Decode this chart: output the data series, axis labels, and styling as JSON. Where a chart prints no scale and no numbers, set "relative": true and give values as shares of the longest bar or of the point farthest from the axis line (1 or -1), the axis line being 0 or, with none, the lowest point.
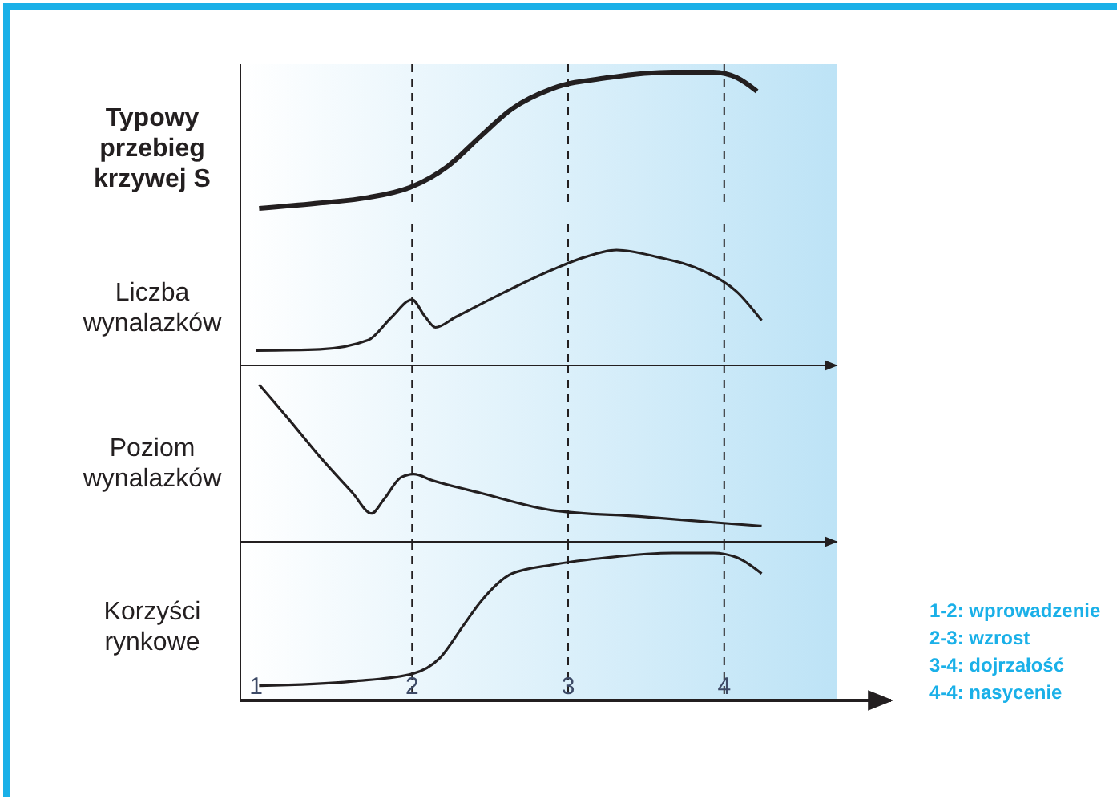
{
  "chart_data": [
    {
      "type": "line",
      "ylabel": "Typowy przebieg krzywej S",
      "relative": true,
      "tick_labels": false,
      "xlim": [
        0.9,
        4.72
      ],
      "line_style": "solid",
      "marker": "none",
      "series": [
        {
          "color": "#231f20",
          "x": [
            1.02,
            1.41,
            1.72,
            2.0,
            2.23,
            2.44,
            2.64,
            2.9,
            3.26,
            3.67,
            3.93,
            4.08,
            4.21
          ],
          "values": [
            0,
            0.04,
            0.08,
            0.16,
            0.31,
            0.53,
            0.73,
            0.88,
            0.96,
            1,
            1,
            0.96,
            0.86
          ]
        }
      ],
      "ref_lines": [
        {
          "axis": "x",
          "value": 2,
          "line_style": "dashed"
        },
        {
          "axis": "x",
          "value": 3,
          "line_style": "dashed"
        },
        {
          "axis": "x",
          "value": 4,
          "line_style": "dashed"
        }
      ]
    },
    {
      "type": "line",
      "ylabel": "Liczba wynalazków",
      "relative": true,
      "tick_labels": false,
      "xlim": [
        0.9,
        4.72
      ],
      "line_style": "solid",
      "marker": "none",
      "series": [
        {
          "color": "#231f20",
          "x": [
            1.0,
            1.41,
            1.72,
            1.87,
            2.0,
            2.08,
            2.15,
            2.28,
            2.54,
            2.9,
            3.11,
            3.31,
            3.57,
            3.88,
            4.08,
            4.24
          ],
          "values": [
            0.13,
            0.14,
            0.22,
            0.42,
            0.57,
            0.43,
            0.33,
            0.42,
            0.6,
            0.83,
            0.94,
            1,
            0.94,
            0.81,
            0.64,
            0.39
          ]
        }
      ],
      "ref_lines": [
        {
          "axis": "x",
          "value": 2,
          "line_style": "dashed"
        },
        {
          "axis": "x",
          "value": 3,
          "line_style": "dashed"
        },
        {
          "axis": "x",
          "value": 4,
          "line_style": "dashed"
        }
      ]
    },
    {
      "type": "line",
      "ylabel": "Poziom wynalazków",
      "relative": true,
      "tick_labels": false,
      "xlim": [
        0.9,
        4.72
      ],
      "line_style": "solid",
      "marker": "none",
      "series": [
        {
          "color": "#231f20",
          "x": [
            1.02,
            1.21,
            1.41,
            1.62,
            1.74,
            1.82,
            1.93,
            2.01,
            2.13,
            2.44,
            2.9,
            3.47,
            3.98,
            4.24
          ],
          "values": [
            1,
            0.78,
            0.54,
            0.31,
            0.18,
            0.27,
            0.41,
            0.43,
            0.39,
            0.31,
            0.2,
            0.16,
            0.12,
            0.1
          ]
        }
      ],
      "ref_lines": [
        {
          "axis": "x",
          "value": 2,
          "line_style": "dashed"
        },
        {
          "axis": "x",
          "value": 3,
          "line_style": "dashed"
        },
        {
          "axis": "x",
          "value": 4,
          "line_style": "dashed"
        }
      ]
    },
    {
      "type": "line",
      "ylabel": "Korzyści rynkowe",
      "relative": true,
      "tick_labels": "x",
      "xlim": [
        0.9,
        4.72
      ],
      "xticks": [
        1,
        2,
        3,
        4
      ],
      "line_style": "solid",
      "marker": "none",
      "series": [
        {
          "color": "#231f20",
          "x": [
            1.02,
            1.62,
            2.0,
            2.18,
            2.33,
            2.44,
            2.64,
            2.9,
            3.26,
            3.67,
            3.93,
            4.08,
            4.24
          ],
          "values": [
            0.1,
            0.13,
            0.18,
            0.29,
            0.51,
            0.67,
            0.86,
            0.92,
            0.97,
            1,
            1,
            0.97,
            0.86
          ]
        }
      ],
      "ref_lines": [
        {
          "axis": "x",
          "value": 2,
          "line_style": "dashed"
        },
        {
          "axis": "x",
          "value": 3,
          "line_style": "dashed"
        },
        {
          "axis": "x",
          "value": 4,
          "line_style": "dashed"
        }
      ],
      "annotations": [
        "1-2: wprowadzenie",
        "2-3: wzrost",
        "3-4: dojrzałość",
        "4-4: nasycenie"
      ]
    }
  ]
}
